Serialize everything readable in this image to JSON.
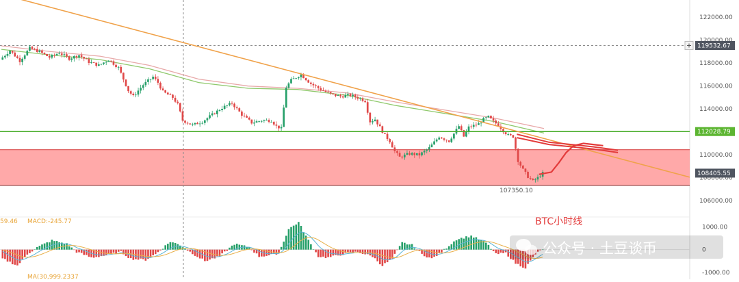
{
  "chart_data": {
    "type": "candlestick",
    "title": "BTC小时线",
    "watermark": "公众号 · 土豆谈币",
    "price_axis": {
      "ylim": [
        105000,
        123500
      ],
      "ticks": [
        122000,
        120000,
        118000,
        116000,
        114000,
        112000,
        110000,
        108000,
        106000
      ],
      "tick_labels": [
        "122000.00",
        "120000.00",
        "118000.00",
        "116000.00",
        "114000.00",
        "112000.00",
        "110000.00",
        "108000.00",
        "106000.00"
      ]
    },
    "price_tags": [
      {
        "label": "119532.67",
        "value": 119532.67,
        "color": "#4f5560"
      },
      {
        "label": "112028.79",
        "value": 112028.79,
        "color": "#5cb531"
      },
      {
        "label": "108405.55",
        "value": 108405.55,
        "color": "#4f5560"
      }
    ],
    "support_zone": {
      "low": 107350,
      "high": 110450,
      "color": "#ff9a9a"
    },
    "horizontal_line": {
      "value": 112028.79,
      "color": "#4caf2f"
    },
    "crosshair": {
      "value": 119532.67
    },
    "trendline": {
      "start": {
        "i": 0,
        "price": 124000
      },
      "end": {
        "i": 220,
        "price": 108050
      },
      "color": "#f0a24a"
    },
    "low_marker": "107350.10",
    "candle_count": 220,
    "price_path": [
      [
        0,
        118300
      ],
      [
        4,
        119100
      ],
      [
        8,
        118200
      ],
      [
        12,
        119300
      ],
      [
        16,
        119000
      ],
      [
        20,
        118500
      ],
      [
        24,
        118900
      ],
      [
        28,
        118400
      ],
      [
        32,
        118700
      ],
      [
        36,
        118100
      ],
      [
        40,
        117800
      ],
      [
        44,
        118300
      ],
      [
        48,
        117600
      ],
      [
        52,
        115600
      ],
      [
        54,
        115100
      ],
      [
        58,
        116100
      ],
      [
        62,
        116800
      ],
      [
        64,
        116300
      ],
      [
        66,
        115500
      ],
      [
        70,
        115000
      ],
      [
        72,
        114400
      ],
      [
        74,
        113000
      ],
      [
        78,
        112600
      ],
      [
        82,
        112900
      ],
      [
        86,
        113500
      ],
      [
        90,
        114100
      ],
      [
        94,
        114500
      ],
      [
        98,
        113500
      ],
      [
        102,
        112800
      ],
      [
        106,
        113000
      ],
      [
        110,
        113000
      ],
      [
        112,
        112500
      ],
      [
        114,
        112300
      ],
      [
        116,
        115900
      ],
      [
        118,
        116500
      ],
      [
        122,
        117000
      ],
      [
        126,
        116200
      ],
      [
        130,
        115700
      ],
      [
        134,
        115300
      ],
      [
        138,
        115100
      ],
      [
        142,
        115200
      ],
      [
        146,
        114900
      ],
      [
        148,
        114700
      ],
      [
        150,
        112900
      ],
      [
        152,
        113100
      ],
      [
        154,
        112400
      ],
      [
        156,
        111700
      ],
      [
        158,
        111200
      ],
      [
        160,
        110300
      ],
      [
        162,
        109800
      ],
      [
        166,
        110100
      ],
      [
        170,
        110000
      ],
      [
        174,
        110600
      ],
      [
        178,
        111600
      ],
      [
        182,
        111200
      ],
      [
        186,
        112500
      ],
      [
        188,
        111600
      ],
      [
        190,
        112400
      ],
      [
        194,
        112700
      ],
      [
        196,
        113100
      ],
      [
        198,
        113300
      ],
      [
        200,
        112900
      ],
      [
        202,
        112600
      ],
      [
        204,
        112100
      ],
      [
        206,
        111700
      ],
      [
        208,
        111600
      ],
      [
        210,
        109500
      ],
      [
        212,
        108700
      ],
      [
        214,
        108100
      ],
      [
        216,
        107700
      ],
      [
        218,
        108000
      ],
      [
        220,
        108400
      ]
    ],
    "moving_averages": [
      {
        "color": "#8fc96c",
        "points": [
          [
            0,
            119200
          ],
          [
            20,
            118700
          ],
          [
            40,
            118300
          ],
          [
            60,
            117500
          ],
          [
            80,
            116300
          ],
          [
            100,
            115800
          ],
          [
            120,
            115700
          ],
          [
            140,
            115200
          ],
          [
            160,
            114300
          ],
          [
            180,
            113600
          ],
          [
            200,
            112900
          ],
          [
            220,
            111900
          ]
        ]
      },
      {
        "color": "#e8a9a9",
        "points": [
          [
            0,
            119500
          ],
          [
            20,
            119000
          ],
          [
            40,
            118600
          ],
          [
            60,
            117800
          ],
          [
            80,
            116600
          ],
          [
            100,
            116000
          ],
          [
            120,
            115800
          ],
          [
            140,
            115400
          ],
          [
            160,
            114600
          ],
          [
            180,
            113900
          ],
          [
            200,
            113200
          ],
          [
            220,
            112300
          ]
        ]
      }
    ],
    "projection": {
      "color": "#e33b3b",
      "points": [
        [
          218,
          108300
        ],
        [
          223,
          108500
        ],
        [
          226,
          109300
        ],
        [
          229,
          110200
        ],
        [
          232,
          110800
        ],
        [
          236,
          111000
        ],
        [
          240,
          110900
        ],
        [
          244,
          110800
        ]
      ],
      "channel_upper": [
        [
          209,
          111800
        ],
        [
          222,
          111100
        ],
        [
          240,
          110700
        ],
        [
          250,
          110400
        ]
      ],
      "channel_lower": [
        [
          209,
          111500
        ],
        [
          222,
          110900
        ],
        [
          240,
          110500
        ],
        [
          250,
          110200
        ]
      ]
    },
    "macd": {
      "legend_left": "59.46",
      "legend_main": "MACD:-245.77",
      "ma_label": "MA(30,999.2337",
      "ylim": [
        -1300,
        1400
      ],
      "ticks": [
        1000,
        0,
        -1000
      ],
      "tick_labels": [
        "1000.00",
        "0",
        "-1000.00"
      ],
      "histogram_path": [
        [
          0,
          -400
        ],
        [
          6,
          -700
        ],
        [
          10,
          -200
        ],
        [
          14,
          100
        ],
        [
          20,
          400
        ],
        [
          26,
          250
        ],
        [
          30,
          -100
        ],
        [
          36,
          -350
        ],
        [
          42,
          -250
        ],
        [
          48,
          -100
        ],
        [
          52,
          -400
        ],
        [
          58,
          -450
        ],
        [
          62,
          -200
        ],
        [
          68,
          350
        ],
        [
          72,
          200
        ],
        [
          76,
          -100
        ],
        [
          82,
          -500
        ],
        [
          88,
          -300
        ],
        [
          94,
          250
        ],
        [
          100,
          100
        ],
        [
          104,
          -300
        ],
        [
          108,
          -250
        ],
        [
          112,
          -150
        ],
        [
          116,
          900
        ],
        [
          120,
          1200
        ],
        [
          124,
          400
        ],
        [
          128,
          -300
        ],
        [
          132,
          -350
        ],
        [
          138,
          -200
        ],
        [
          144,
          -100
        ],
        [
          150,
          -300
        ],
        [
          154,
          -700
        ],
        [
          158,
          -400
        ],
        [
          162,
          300
        ],
        [
          166,
          200
        ],
        [
          170,
          -200
        ],
        [
          174,
          -400
        ],
        [
          178,
          -100
        ],
        [
          184,
          450
        ],
        [
          190,
          600
        ],
        [
          196,
          300
        ],
        [
          200,
          -200
        ],
        [
          204,
          -150
        ],
        [
          208,
          -600
        ],
        [
          212,
          -800
        ],
        [
          216,
          -200
        ],
        [
          220,
          100
        ]
      ]
    }
  }
}
